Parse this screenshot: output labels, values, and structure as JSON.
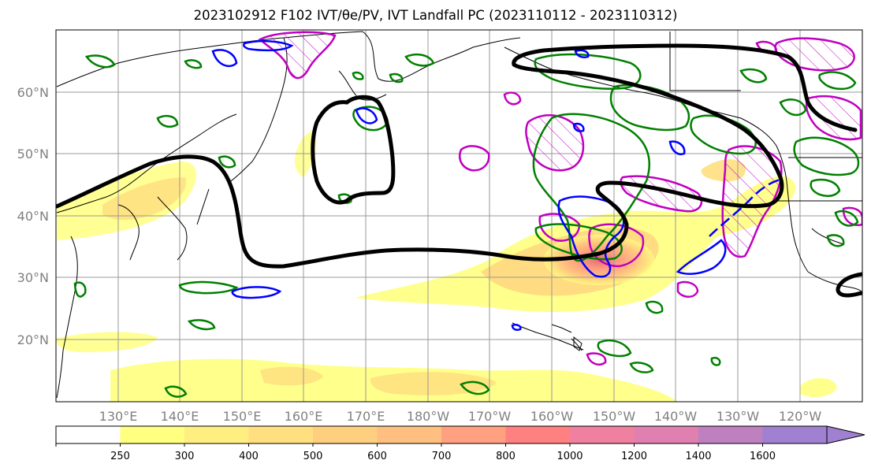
{
  "title": "2023102912 F102 IVT/θe/PV, IVT Landfall PC (2023110112 - 2023110312)",
  "map": {
    "lat_labels": [
      "60°N",
      "50°N",
      "40°N",
      "30°N",
      "20°N"
    ],
    "lon_labels": [
      "130°E",
      "140°E",
      "150°E",
      "160°E",
      "170°E",
      "180°W",
      "170°W",
      "160°W",
      "150°W",
      "140°W",
      "130°W",
      "120°W"
    ],
    "colors": {
      "pc_contour": "#000000",
      "theta_e_contour": "#008000",
      "pv_contour": "#0000ff",
      "hatch_contour": "#c000c0",
      "coastline": "#000000",
      "grid": "#999999"
    }
  },
  "colorbar": {
    "ticks": [
      "250",
      "300",
      "400",
      "500",
      "600",
      "700",
      "800",
      "1000",
      "1200",
      "1400",
      "1600"
    ],
    "colors": [
      "#ffffff",
      "#ffff80",
      "#ffef80",
      "#ffdf80",
      "#ffcf80",
      "#ffbf80",
      "#ffa080",
      "#ff8080",
      "#ef80a0",
      "#df80b0",
      "#bf80c0",
      "#a080d0"
    ]
  }
}
